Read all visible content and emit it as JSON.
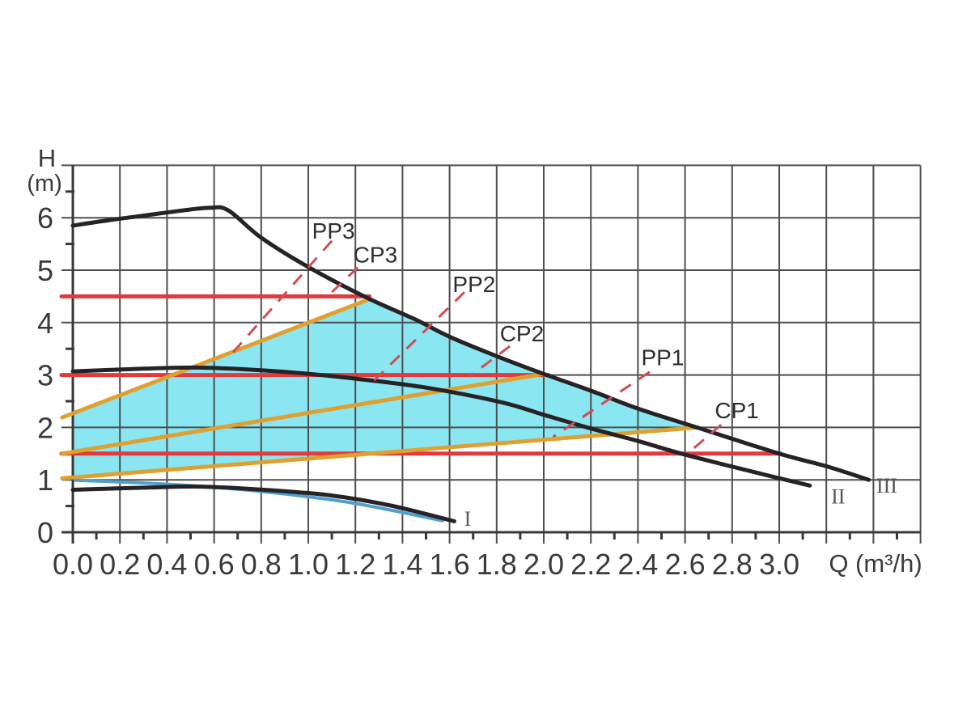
{
  "chart_data": {
    "type": "line",
    "title": "",
    "xlabel": "Q (m³/h)",
    "ylabel_h": "H",
    "ylabel_unit": "(m)",
    "xlim": [
      0,
      3.6
    ],
    "ylim": [
      0,
      7
    ],
    "grid": true,
    "x_tick_values": [
      0.0,
      0.2,
      0.4,
      0.6,
      0.8,
      1.0,
      1.2,
      1.4,
      1.6,
      1.8,
      2.0,
      2.2,
      2.4,
      2.6,
      2.8,
      3.0
    ],
    "x_tick_labels": [
      "0.0",
      "0.2",
      "0.4",
      "0.6",
      "0.8",
      "1.0",
      "1.2",
      "1.4",
      "1.6",
      "1.8",
      "2.0",
      "2.2",
      "2.4",
      "2.6",
      "2.8",
      "3.0"
    ],
    "y_tick_values": [
      0,
      1,
      2,
      3,
      4,
      5,
      6
    ],
    "y_tick_labels": [
      "0",
      "1",
      "2",
      "3",
      "4",
      "5",
      "6"
    ],
    "x_minor_step": 0.1,
    "y_minor_step": 0.5,
    "colors": {
      "black_curve": "#272225",
      "blue_curve": "#4FA0CE",
      "orange_curve": "#DFA032",
      "red_curve": "#E03A3E",
      "leader": "#CF4D52",
      "area_fill": "#8AE6F0",
      "grid": "#4E4E4E",
      "axis": "#383838",
      "text": "#3a3a3a"
    },
    "area": {
      "name": "operating-range-area",
      "points": [
        [
          0,
          2.27
        ],
        [
          1.26,
          4.45
        ],
        [
          1.45,
          4.07
        ],
        [
          1.6,
          3.73
        ],
        [
          1.8,
          3.36
        ],
        [
          2.0,
          3.02
        ],
        [
          2.2,
          2.7
        ],
        [
          2.4,
          2.36
        ],
        [
          2.65,
          2.0
        ],
        [
          0,
          1.05
        ]
      ]
    },
    "series": [
      {
        "name": "cp3-line",
        "label": "CP3",
        "kind": "constant-pressure",
        "color_key": "red_curve",
        "width": 5,
        "points": [
          [
            -0.048,
            4.5
          ],
          [
            1.26,
            4.5
          ]
        ]
      },
      {
        "name": "cp2-line",
        "label": "CP2",
        "kind": "constant-pressure",
        "color_key": "red_curve",
        "width": 5,
        "points": [
          [
            -0.048,
            3.0
          ],
          [
            2.02,
            3.0
          ]
        ]
      },
      {
        "name": "cp1-line",
        "label": "CP1",
        "kind": "constant-pressure",
        "color_key": "red_curve",
        "width": 5,
        "points": [
          [
            -0.048,
            1.5
          ],
          [
            3.005,
            1.5
          ]
        ]
      },
      {
        "name": "pp3-line",
        "label": "PP3",
        "kind": "proportional-pressure",
        "color_key": "orange_curve",
        "width": 5,
        "points": [
          [
            -0.045,
            2.19
          ],
          [
            1.262,
            4.45
          ]
        ]
      },
      {
        "name": "pp2-line",
        "label": "PP2",
        "kind": "proportional-pressure",
        "color_key": "orange_curve",
        "width": 5,
        "points": [
          [
            -0.045,
            1.5
          ],
          [
            2.0,
            3.02
          ]
        ]
      },
      {
        "name": "pp1-line",
        "label": "PP1",
        "kind": "proportional-pressure",
        "color_key": "orange_curve",
        "width": 5,
        "points": [
          [
            -0.045,
            1.03
          ],
          [
            2.655,
            2.0
          ]
        ]
      },
      {
        "name": "curve-min-blue",
        "label": "",
        "kind": "pump-curve",
        "color_key": "blue_curve",
        "width": 4,
        "points": [
          [
            0.01,
            0.99
          ],
          [
            0.3,
            0.94
          ],
          [
            0.6,
            0.86
          ],
          [
            0.9,
            0.73
          ],
          [
            1.2,
            0.55
          ],
          [
            1.57,
            0.22
          ]
        ]
      },
      {
        "name": "curve-I",
        "label": "I",
        "kind": "pump-curve",
        "color_key": "black_curve",
        "width": 5,
        "points": [
          [
            0,
            0.81
          ],
          [
            0.3,
            0.85
          ],
          [
            0.55,
            0.87
          ],
          [
            0.85,
            0.8
          ],
          [
            1.1,
            0.7
          ],
          [
            1.35,
            0.51
          ],
          [
            1.62,
            0.21
          ]
        ]
      },
      {
        "name": "curve-II",
        "label": "II",
        "kind": "pump-curve",
        "color_key": "black_curve",
        "width": 5,
        "points": [
          [
            0,
            3.07
          ],
          [
            0.3,
            3.12
          ],
          [
            0.55,
            3.14
          ],
          [
            0.9,
            3.06
          ],
          [
            1.2,
            2.93
          ],
          [
            1.5,
            2.76
          ],
          [
            1.82,
            2.48
          ],
          [
            2.0,
            2.24
          ],
          [
            2.2,
            1.98
          ],
          [
            2.4,
            1.74
          ],
          [
            2.6,
            1.48
          ],
          [
            2.9,
            1.14
          ],
          [
            3.13,
            0.89
          ]
        ]
      },
      {
        "name": "curve-III",
        "label": "III",
        "kind": "pump-curve",
        "color_key": "black_curve",
        "width": 5,
        "points": [
          [
            0,
            5.85
          ],
          [
            0.15,
            5.95
          ],
          [
            0.3,
            6.04
          ],
          [
            0.45,
            6.13
          ],
          [
            0.58,
            6.19
          ],
          [
            0.66,
            6.14
          ],
          [
            0.8,
            5.62
          ],
          [
            1.0,
            5.06
          ],
          [
            1.25,
            4.47
          ],
          [
            1.45,
            4.07
          ],
          [
            1.6,
            3.73
          ],
          [
            1.8,
            3.36
          ],
          [
            2.0,
            3.02
          ],
          [
            2.2,
            2.7
          ],
          [
            2.4,
            2.36
          ],
          [
            2.65,
            2.0
          ],
          [
            3.0,
            1.5
          ],
          [
            3.2,
            1.26
          ],
          [
            3.38,
            1.0
          ]
        ]
      }
    ],
    "curve_labels": [
      {
        "name": "label-PP3",
        "text": "PP3",
        "x": 1.107,
        "y": 5.76,
        "style": "curve-label"
      },
      {
        "name": "label-CP3",
        "text": "CP3",
        "x": 1.285,
        "y": 5.3,
        "style": "curve-label"
      },
      {
        "name": "label-PP2",
        "text": "PP2",
        "x": 1.704,
        "y": 4.74,
        "style": "curve-label"
      },
      {
        "name": "label-CP2",
        "text": "CP2",
        "x": 1.907,
        "y": 3.8,
        "style": "curve-label"
      },
      {
        "name": "label-PP1",
        "text": "PP1",
        "x": 2.505,
        "y": 3.34,
        "style": "curve-label"
      },
      {
        "name": "label-CP1",
        "text": "CP1",
        "x": 2.82,
        "y": 2.33,
        "style": "curve-label"
      },
      {
        "name": "label-I",
        "text": "I",
        "x": 1.677,
        "y": 0.28,
        "style": "numeral"
      },
      {
        "name": "label-II",
        "text": "II",
        "x": 3.25,
        "y": 0.7,
        "style": "numeral"
      },
      {
        "name": "label-III",
        "text": "III",
        "x": 3.457,
        "y": 0.91,
        "style": "numeral"
      }
    ],
    "leaders": [
      {
        "name": "leader-PP3",
        "from": [
          1.1,
          5.56
        ],
        "to": [
          0.674,
          3.4
        ]
      },
      {
        "name": "leader-CP3",
        "from": [
          1.21,
          5.05
        ],
        "to": [
          1.072,
          4.46
        ]
      },
      {
        "name": "leader-PP2",
        "from": [
          1.663,
          4.58
        ],
        "to": [
          1.258,
          2.8
        ]
      },
      {
        "name": "leader-CP2",
        "from": [
          1.856,
          3.55
        ],
        "to": [
          1.684,
          2.97
        ]
      },
      {
        "name": "leader-PP1",
        "from": [
          2.45,
          3.06
        ],
        "to": [
          2.04,
          1.82
        ]
      },
      {
        "name": "leader-CP1",
        "from": [
          2.753,
          2.05
        ],
        "to": [
          2.608,
          1.49
        ]
      }
    ]
  }
}
